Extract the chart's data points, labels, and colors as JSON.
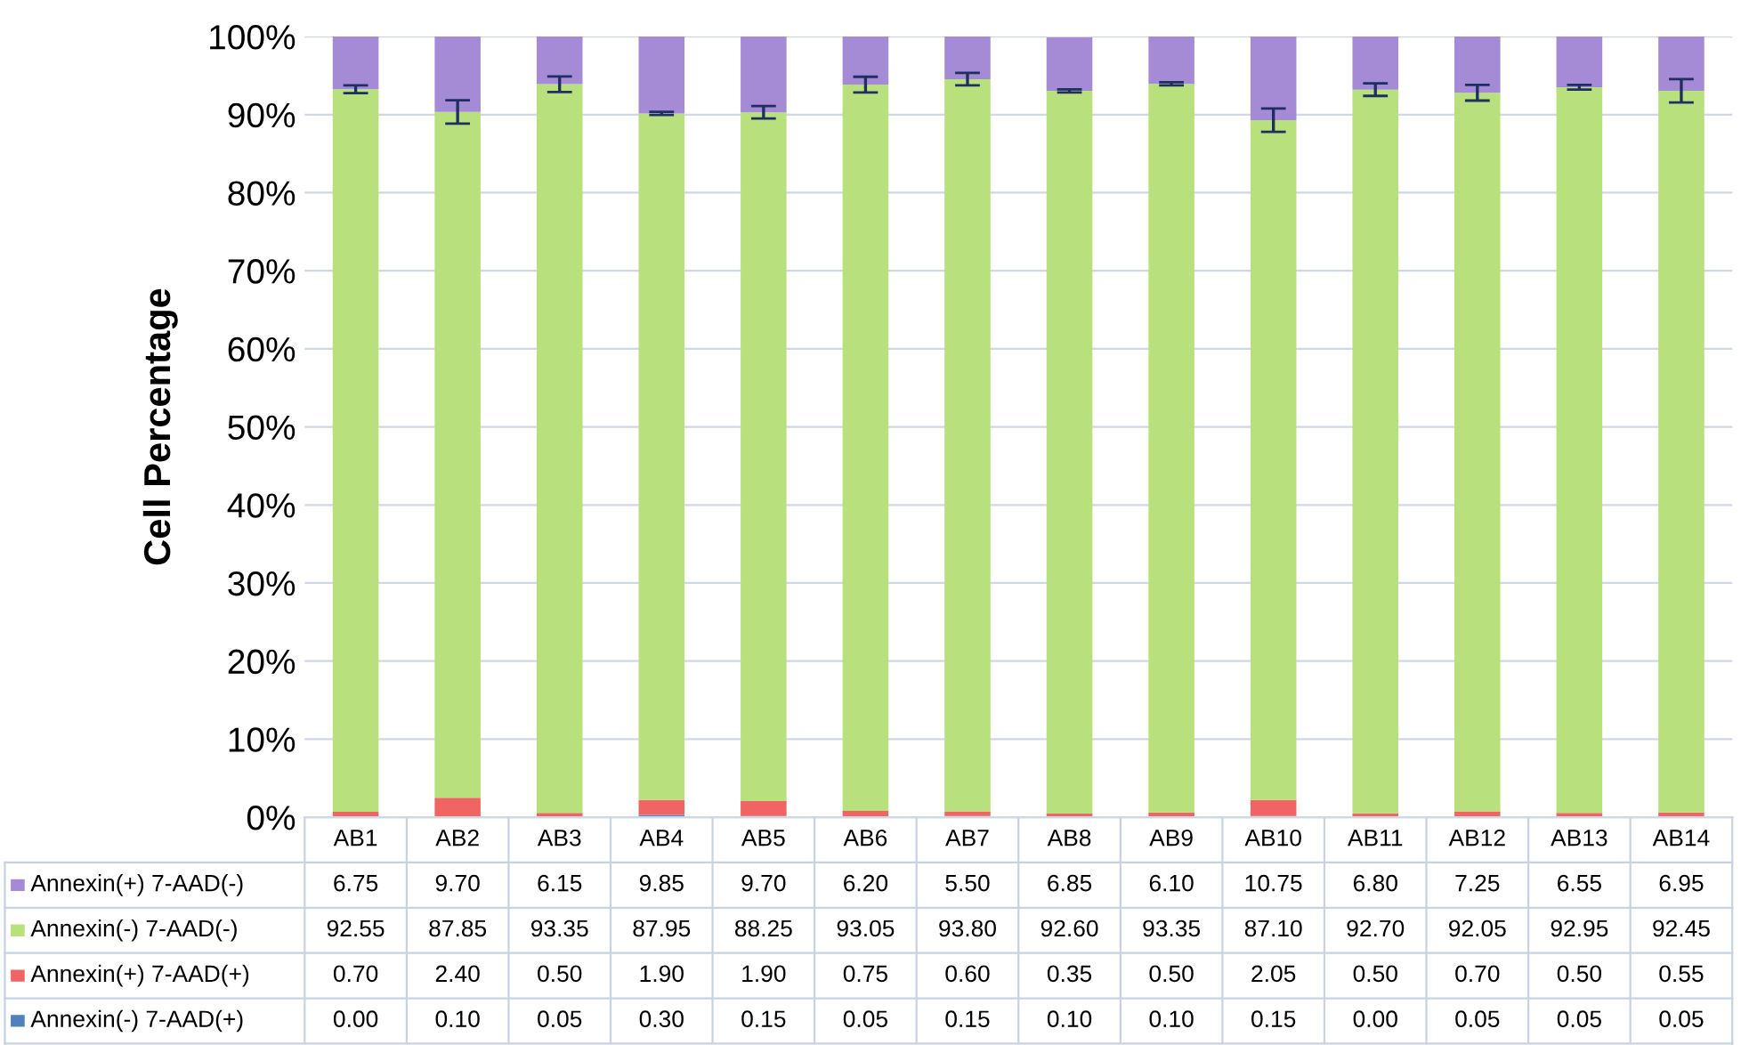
{
  "chart_data": {
    "type": "bar",
    "stacked": true,
    "ylabel": "Cell Percentage",
    "categories": [
      "AB1",
      "AB2",
      "AB3",
      "AB4",
      "AB5",
      "AB6",
      "AB7",
      "AB8",
      "AB9",
      "AB10",
      "AB11",
      "AB12",
      "AB13",
      "AB14"
    ],
    "series": [
      {
        "name": "Annexin(-) 7-AAD(+)",
        "color": "#4f81bd",
        "values": [
          0.0,
          0.1,
          0.05,
          0.3,
          0.15,
          0.05,
          0.15,
          0.1,
          0.1,
          0.15,
          0.0,
          0.05,
          0.05,
          0.05
        ],
        "value_labels": [
          "0.00",
          "0.10",
          "0.05",
          "0.30",
          "0.15",
          "0.05",
          "0.15",
          "0.10",
          "0.10",
          "0.15",
          "0.00",
          "0.05",
          "0.05",
          "0.05"
        ]
      },
      {
        "name": "Annexin(+) 7-AAD(+)",
        "color": "#f06464",
        "values": [
          0.7,
          2.4,
          0.5,
          1.9,
          1.9,
          0.75,
          0.6,
          0.35,
          0.5,
          2.05,
          0.5,
          0.7,
          0.5,
          0.55
        ],
        "value_labels": [
          "0.70",
          "2.40",
          "0.50",
          "1.90",
          "1.90",
          "0.75",
          "0.60",
          "0.35",
          "0.50",
          "2.05",
          "0.50",
          "0.70",
          "0.50",
          "0.55"
        ]
      },
      {
        "name": "Annexin(-) 7-AAD(-)",
        "color": "#b8e07c",
        "values": [
          92.55,
          87.85,
          93.35,
          87.95,
          88.25,
          93.05,
          93.8,
          92.6,
          93.35,
          87.1,
          92.7,
          92.05,
          92.95,
          92.45
        ],
        "value_labels": [
          "92.55",
          "87.85",
          "93.35",
          "87.95",
          "88.25",
          "93.05",
          "93.80",
          "92.60",
          "93.35",
          "87.10",
          "92.70",
          "92.05",
          "92.95",
          "92.45"
        ],
        "errors": [
          0.5,
          1.5,
          1,
          0.2,
          0.8,
          1,
          0.8,
          0.2,
          0.2,
          1.5,
          0.8,
          1,
          0.3,
          1.5
        ]
      },
      {
        "name": "Annexin(+) 7-AAD(-)",
        "color": "#a58bd6",
        "values": [
          6.75,
          9.7,
          6.15,
          9.85,
          9.7,
          6.2,
          5.5,
          6.85,
          6.1,
          10.75,
          6.8,
          7.25,
          6.55,
          6.95
        ],
        "value_labels": [
          "6.75",
          "9.70",
          "6.15",
          "9.85",
          "9.70",
          "6.20",
          "5.50",
          "6.85",
          "6.10",
          "10.75",
          "6.80",
          "7.25",
          "6.55",
          "6.95"
        ]
      }
    ],
    "ylim": [
      0,
      100
    ],
    "yticks": [
      {
        "value": 0,
        "label": "0%"
      },
      {
        "value": 10,
        "label": "10%"
      },
      {
        "value": 20,
        "label": "20%"
      },
      {
        "value": 30,
        "label": "30%"
      },
      {
        "value": 40,
        "label": "40%"
      },
      {
        "value": 50,
        "label": "50%"
      },
      {
        "value": 60,
        "label": "60%"
      },
      {
        "value": 70,
        "label": "70%"
      },
      {
        "value": 80,
        "label": "80%"
      },
      {
        "value": 90,
        "label": "90%"
      },
      {
        "value": 100,
        "label": "100%"
      }
    ],
    "grid": "y",
    "legend": "bottom"
  }
}
